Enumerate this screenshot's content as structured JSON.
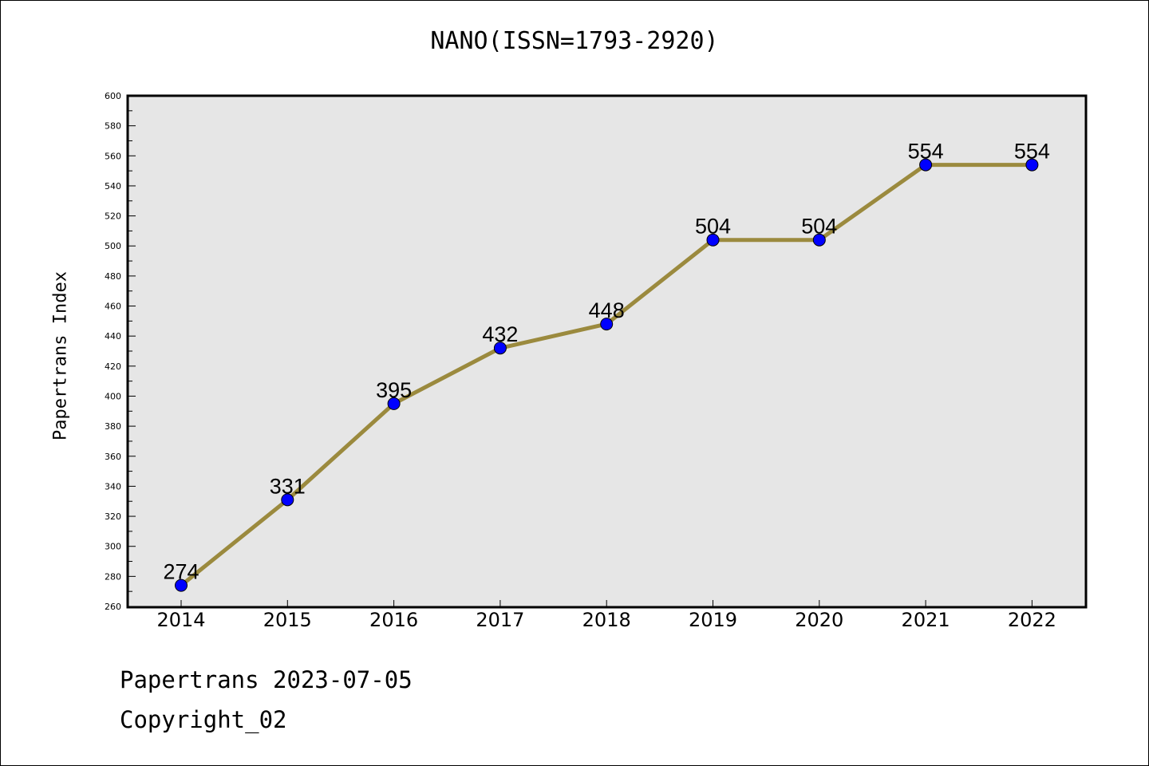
{
  "chart_data": {
    "type": "line",
    "title": "NANO(ISSN=1793-2920)",
    "xlabel": "",
    "ylabel": "Papertrans Index",
    "categories": [
      "2014",
      "2015",
      "2016",
      "2017",
      "2018",
      "2019",
      "2020",
      "2021",
      "2022"
    ],
    "series": [
      {
        "values": [
          274,
          331,
          395,
          432,
          448,
          504,
          504,
          554,
          554
        ],
        "line_color": "#9b8a3e",
        "marker_color": "#0000ff"
      }
    ],
    "ylim": [
      260,
      600
    ],
    "yticks": [
      "260",
      "280",
      "300",
      "320",
      "340",
      "360",
      "380",
      "400",
      "420",
      "440",
      "460",
      "480",
      "500",
      "520",
      "540",
      "560",
      "580",
      "600"
    ],
    "grid": false,
    "legend": "none",
    "plot_background": "#e6e6e6"
  },
  "footer": {
    "line1": "Papertrans 2023-07-05",
    "line2": "Copyright_02"
  }
}
